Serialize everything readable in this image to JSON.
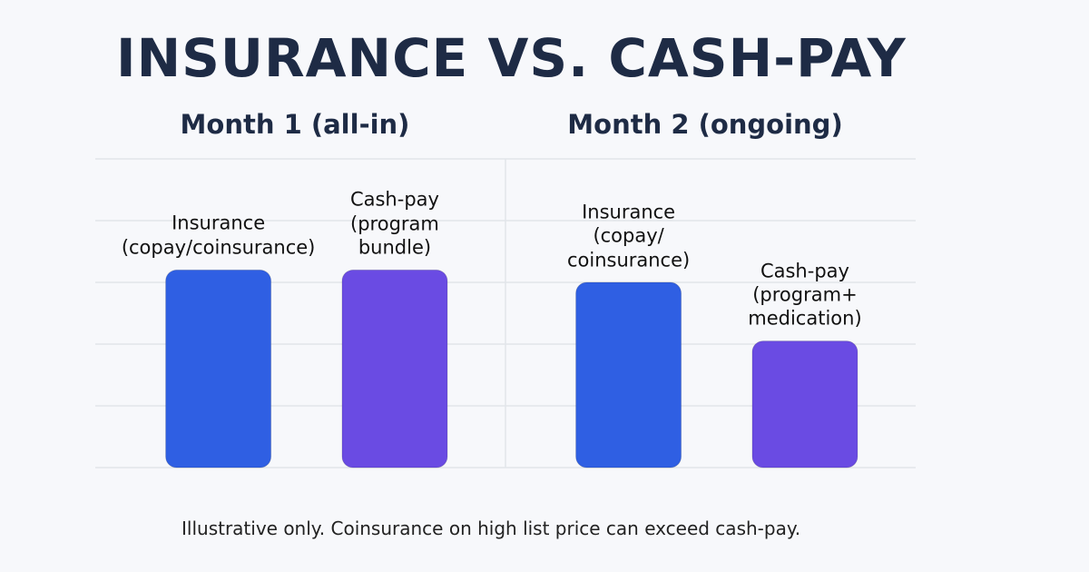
{
  "title": "INSURANCE VS. CASH-PAY",
  "note": "Illustrative only. Coinsurance on high list price can exceed cash-pay.",
  "chart_data": [
    {
      "type": "bar",
      "title": "Month 1 (all-in)",
      "categories": [
        "Insurance\n(copay/coinsurance)",
        "Cash-pay\n(program\nbundle)"
      ],
      "values": [
        3.2,
        3.2
      ],
      "colors": [
        "#2f5fe3",
        "#6a4be3"
      ],
      "ylim": [
        0,
        5
      ],
      "yticks": [
        0,
        1,
        2,
        3,
        4,
        5
      ],
      "grid": true,
      "show_tick_labels": false
    },
    {
      "type": "bar",
      "title": "Month 2 (ongoing)",
      "categories": [
        "Insurance\n(copay/\ncoinsurance)",
        "Cash-pay\n(program+\nmedication)"
      ],
      "values": [
        3.0,
        2.05
      ],
      "colors": [
        "#2f5fe3",
        "#6a4be3"
      ],
      "ylim": [
        0,
        5
      ],
      "yticks": [
        0,
        1,
        2,
        3,
        4,
        5
      ],
      "grid": true,
      "show_tick_labels": false
    }
  ]
}
